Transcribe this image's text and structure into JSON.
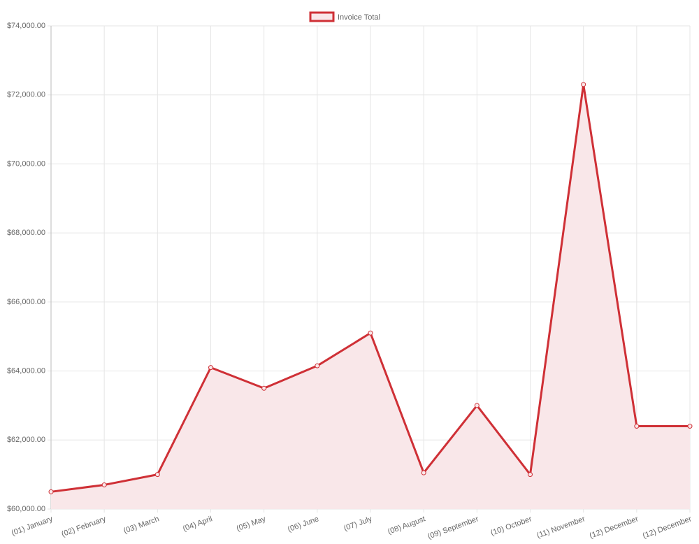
{
  "chart_data": {
    "type": "line",
    "categories": [
      "(01) January",
      "(02) February",
      "(03) March",
      "(04) April",
      "(05) May",
      "(06) June",
      "(07) July",
      "(08) August",
      "(09) September",
      "(10) October",
      "(11) November",
      "(12) December",
      "(12) December"
    ],
    "series": [
      {
        "name": "Invoice Total",
        "color": "#cf3036",
        "area_color": "#f9e7e9",
        "values": [
          60500,
          60700,
          61000,
          64100,
          63500,
          64150,
          65100,
          61050,
          63000,
          61000,
          72300,
          62400,
          62400
        ]
      }
    ],
    "ylim": [
      60000,
      74000
    ],
    "yticks": [
      {
        "value": 60000,
        "label": "$60,000.00"
      },
      {
        "value": 62000,
        "label": "$62,000.00"
      },
      {
        "value": 64000,
        "label": "$64,000.00"
      },
      {
        "value": 66000,
        "label": "$66,000.00"
      },
      {
        "value": 68000,
        "label": "$68,000.00"
      },
      {
        "value": 70000,
        "label": "$70,000.00"
      },
      {
        "value": 72000,
        "label": "$72,000.00"
      },
      {
        "value": 74000,
        "label": "$74,000.00"
      }
    ],
    "grid": true,
    "legend": "top"
  }
}
